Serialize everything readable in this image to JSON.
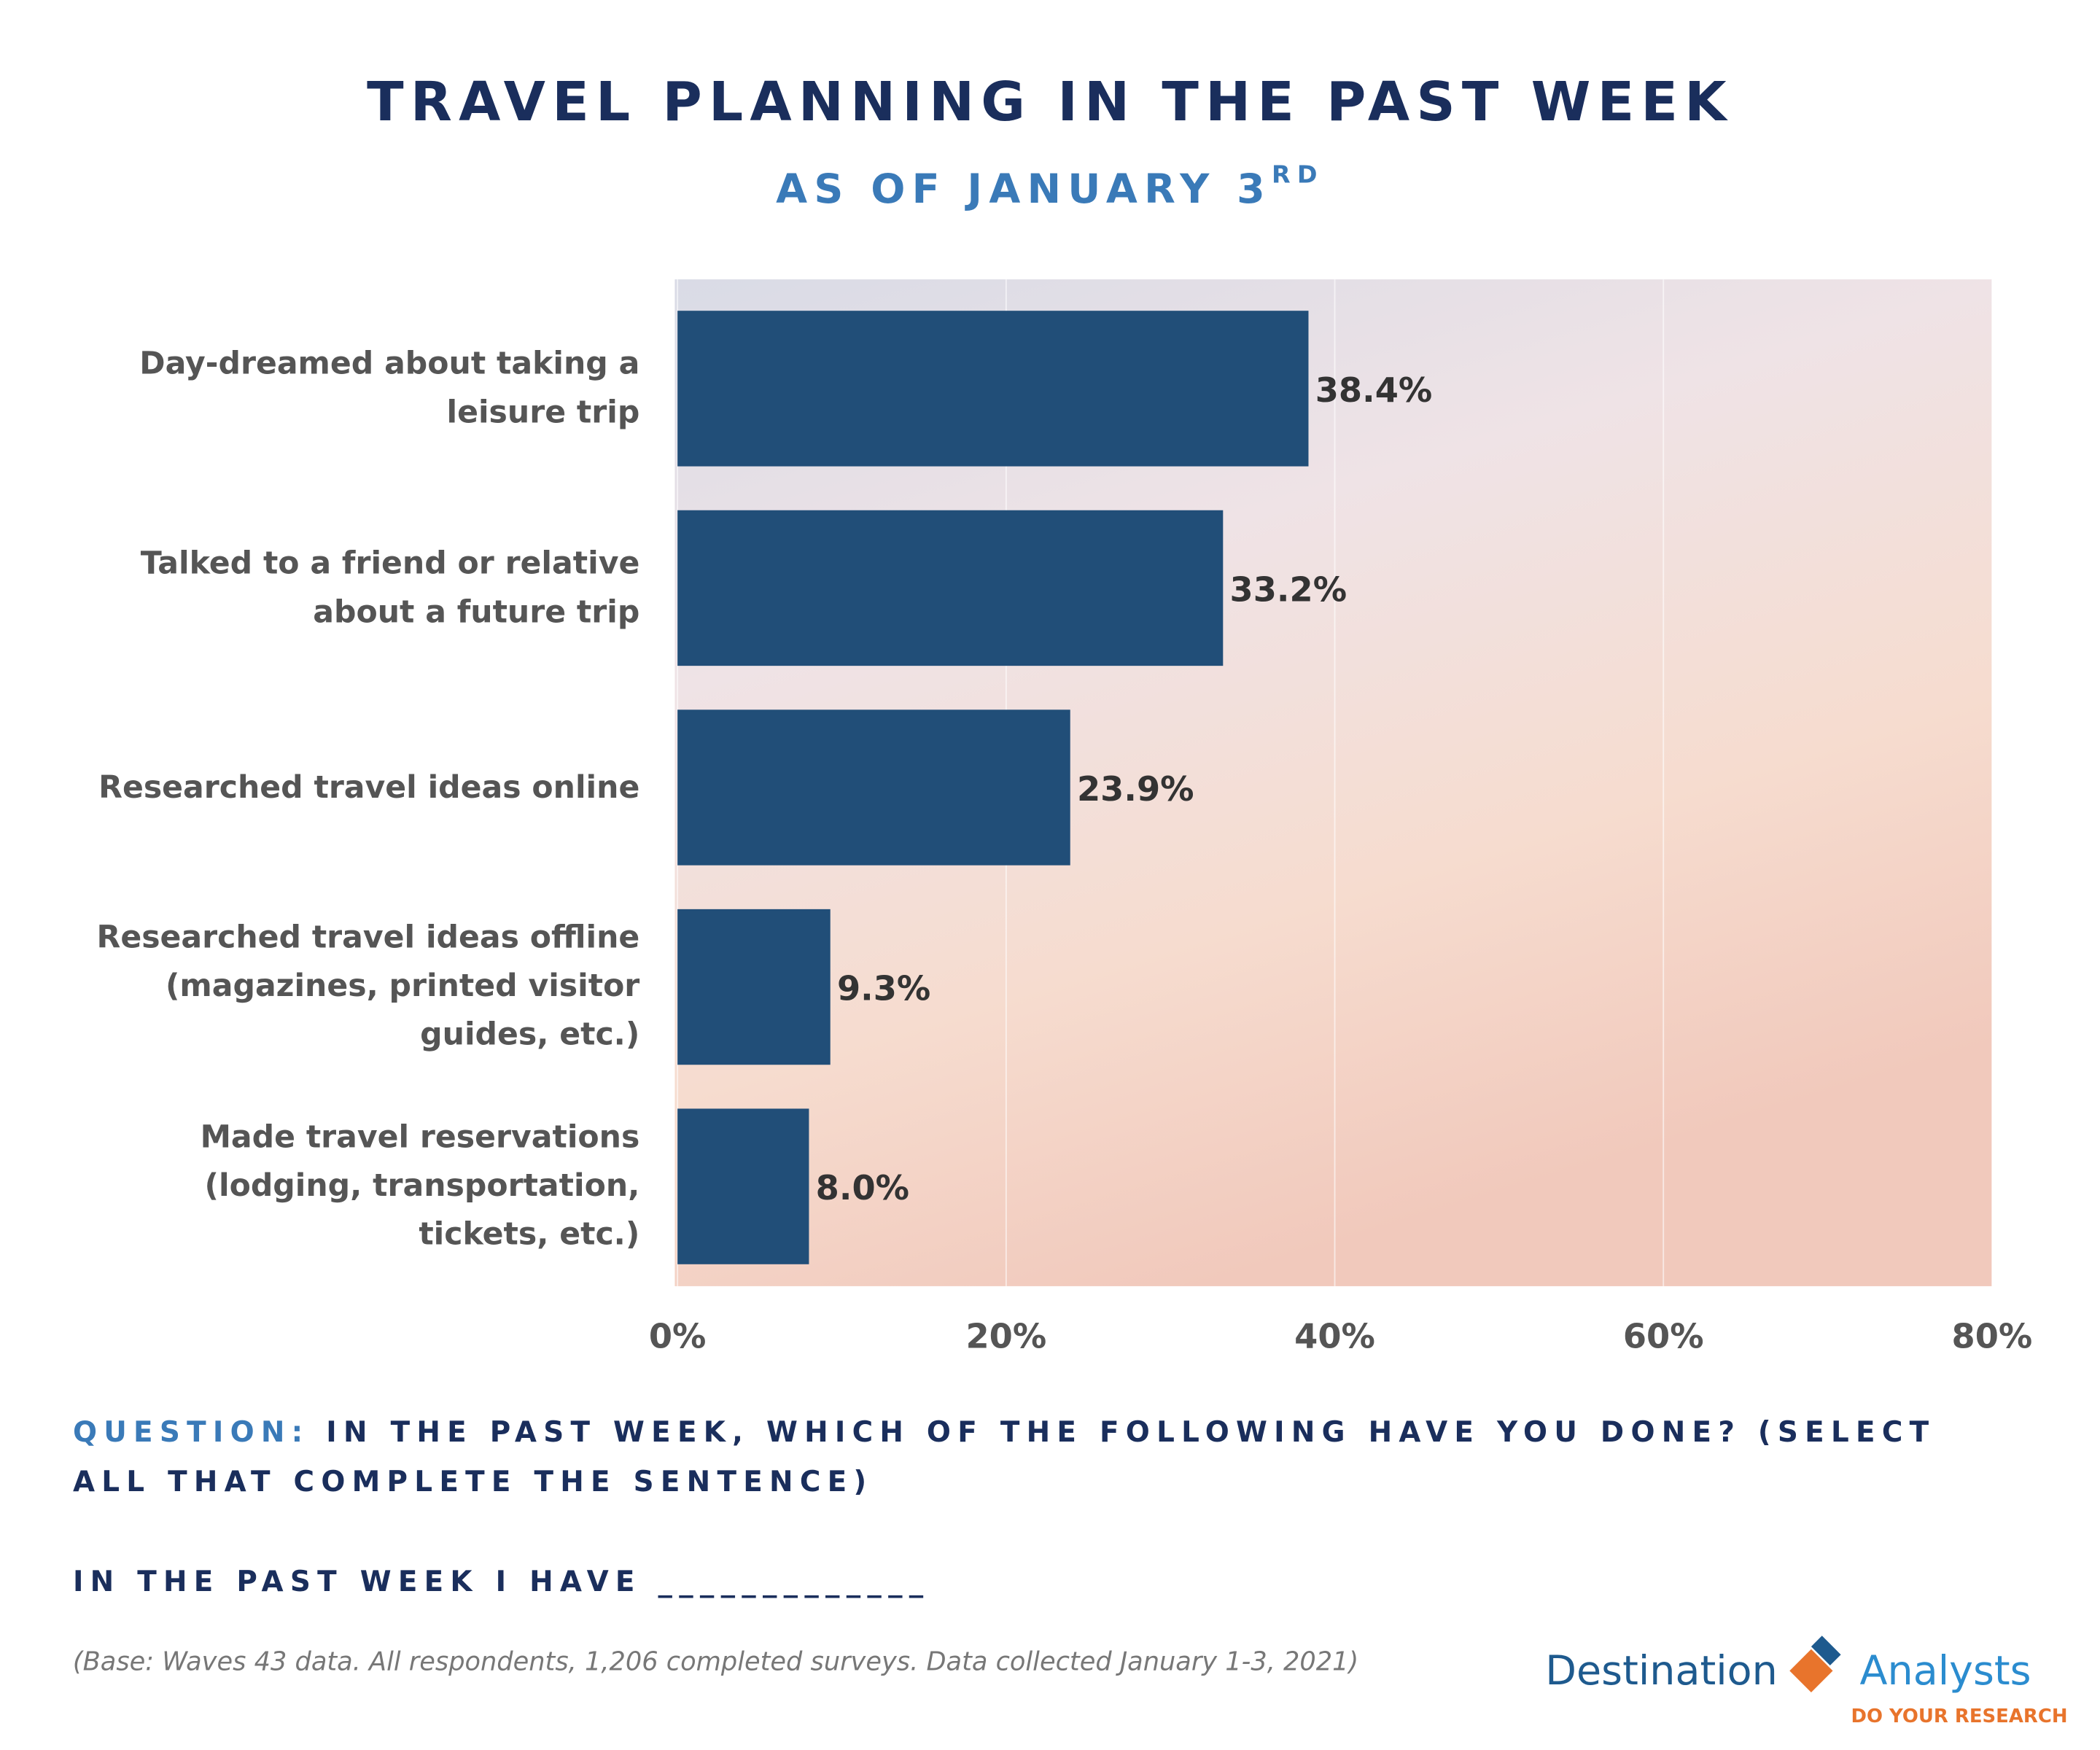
{
  "chart_data": {
    "type": "hbar",
    "title": "TRAVEL PLANNING IN THE PAST WEEK",
    "subtitle": "AS OF JANUARY 3",
    "subtitle_superscript": "RD",
    "categories": [
      "Day-dreamed about taking a leisure trip",
      "Talked to a friend or relative about a future trip",
      "Researched travel ideas online",
      "Researched travel ideas offline (magazines, printed visitor guides, etc.)",
      "Made travel reservations (lodging, transportation, tickets, etc.)"
    ],
    "values": [
      38.4,
      33.2,
      23.9,
      9.3,
      8.0
    ],
    "value_labels": [
      "38.4%",
      "33.2%",
      "23.9%",
      "9.3%",
      "8.0%"
    ],
    "color": "#214e78",
    "xlim": [
      0,
      80
    ],
    "xticks": [
      {
        "value": 0,
        "label": "0%"
      },
      {
        "value": 20,
        "label": "20%"
      },
      {
        "value": 40,
        "label": "40%"
      },
      {
        "value": 60,
        "label": "60%"
      },
      {
        "value": 80,
        "label": "80%"
      }
    ],
    "grid": true,
    "question_label": "QUESTION:",
    "question": "IN THE PAST WEEK, WHICH OF THE FOLLOWING HAVE YOU DONE? (SELECT ALL THAT COMPLETE THE SENTENCE)",
    "prompt": "IN THE PAST WEEK I HAVE _____________",
    "note": "(Base: Waves 43 data. All respondents, 1,206 completed surveys. Data collected January 1-3, 2021)",
    "logo": {
      "left": "Destination",
      "right": "Analysts",
      "tagline": "DO YOUR RESEARCH"
    }
  }
}
